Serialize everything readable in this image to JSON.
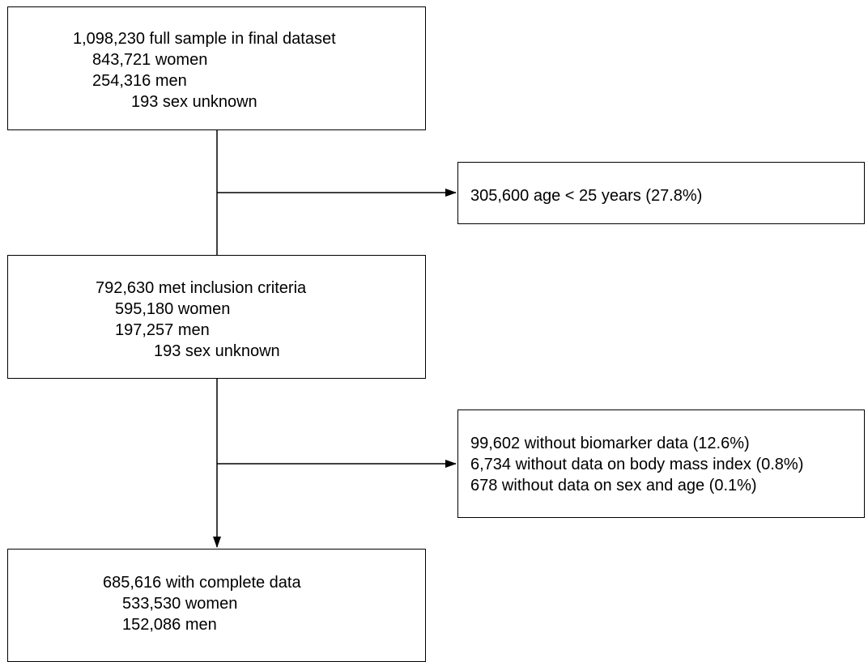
{
  "flowchart": {
    "full_sample": {
      "total": "1,098,230 full sample in final dataset",
      "women": "843,721 women",
      "men": "254,316 men",
      "unknown": "193 sex unknown"
    },
    "age_exclusion": {
      "text": "305,600 age < 25 years (27.8%)"
    },
    "met_criteria": {
      "total": "792,630 met inclusion criteria",
      "women": "595,180 women",
      "men": "197,257 men",
      "unknown": "193 sex unknown"
    },
    "missing_data_exclusion": {
      "biomarker": "99,602 without biomarker data (12.6%)",
      "bmi": "6,734 without data on body mass index (0.8%)",
      "sex_age": "678 without data on sex and age (0.1%)"
    },
    "complete_data": {
      "total": "685,616 with complete data",
      "women": "533,530 women",
      "men": "152,086 men"
    }
  },
  "colors": {
    "line": "#000000",
    "box_border": "#000000",
    "background": "#ffffff"
  }
}
